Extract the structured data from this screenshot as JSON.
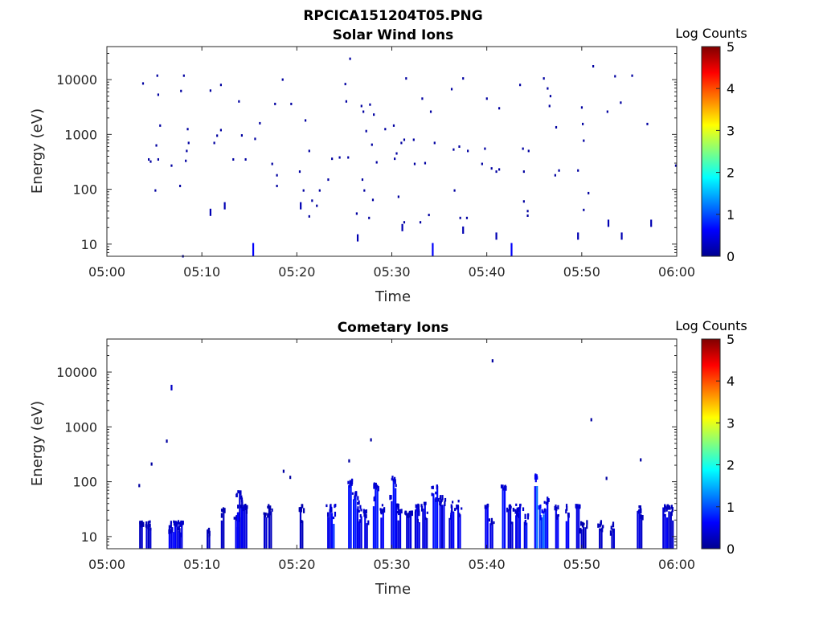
{
  "figure": {
    "title": "RPCICA151204T05.PNG"
  },
  "time_ticks": [
    "05:00",
    "05:10",
    "05:20",
    "05:30",
    "05:40",
    "05:50",
    "06:00"
  ],
  "energy_ticks": [
    {
      "value": 10,
      "label": "10"
    },
    {
      "value": 100,
      "label": "100"
    },
    {
      "value": 1000,
      "label": "1000"
    },
    {
      "value": 10000,
      "label": "10000"
    }
  ],
  "colorbar": {
    "label": "Log Counts",
    "ticks": [
      "0",
      "1",
      "2",
      "3",
      "4",
      "5"
    ],
    "range": [
      0,
      5
    ],
    "colormap": [
      "#00008f",
      "#0000ff",
      "#0080ff",
      "#00ffff",
      "#80ff80",
      "#ffff00",
      "#ff8000",
      "#ff0000",
      "#800000"
    ]
  },
  "chart_data": [
    {
      "type": "heatmap",
      "title": "Solar Wind Ions",
      "xlabel": "Time",
      "ylabel": "Energy (eV)",
      "xlim": [
        "05:00",
        "06:00"
      ],
      "ylim": [
        6,
        40000
      ],
      "yscale": "log",
      "zlabel": "Log Counts",
      "zlim": [
        0,
        5
      ],
      "grid": false,
      "colorbar_position": "right",
      "events_minutes_energy_count": [
        [
          3.8,
          8500,
          0.1
        ],
        [
          4.4,
          350,
          0.1
        ],
        [
          4.6,
          320,
          0.1
        ],
        [
          5.1,
          95,
          0.1
        ],
        [
          5.2,
          630,
          0.1
        ],
        [
          5.3,
          11800,
          0.1
        ],
        [
          5.4,
          5300,
          0.1
        ],
        [
          5.4,
          350,
          0.1
        ],
        [
          5.6,
          1450,
          0.1
        ],
        [
          6.8,
          270,
          0.1
        ],
        [
          7.7,
          115,
          0.1
        ],
        [
          7.8,
          6200,
          0.1
        ],
        [
          8.1,
          11800,
          0.1
        ],
        [
          8.3,
          330,
          0.1
        ],
        [
          8.4,
          500,
          0.1
        ],
        [
          8.5,
          1250,
          0.1
        ],
        [
          8.6,
          700,
          0.1
        ],
        [
          10.9,
          6300,
          0.1
        ],
        [
          10.9,
          38,
          0.2
        ],
        [
          11.3,
          700,
          0.1
        ],
        [
          11.6,
          950,
          0.1
        ],
        [
          12.0,
          1200,
          0.1
        ],
        [
          12.0,
          8000,
          0.1
        ],
        [
          12.4,
          50,
          0.2
        ],
        [
          13.3,
          350,
          0.1
        ],
        [
          13.9,
          4000,
          0.1
        ],
        [
          14.2,
          960,
          0.1
        ],
        [
          14.6,
          350,
          0.1
        ],
        [
          15.4,
          8,
          0.6
        ],
        [
          15.6,
          830,
          0.1
        ],
        [
          16.1,
          1600,
          0.1
        ],
        [
          17.4,
          290,
          0.1
        ],
        [
          17.7,
          3600,
          0.1
        ],
        [
          17.9,
          180,
          0.1
        ],
        [
          17.9,
          115,
          0.1
        ],
        [
          18.5,
          10000,
          0.1
        ],
        [
          19.4,
          3600,
          0.1
        ],
        [
          20.3,
          210,
          0.1
        ],
        [
          20.4,
          50,
          0.2
        ],
        [
          20.7,
          95,
          0.1
        ],
        [
          20.9,
          1800,
          0.1
        ],
        [
          21.3,
          500,
          0.1
        ],
        [
          21.3,
          32,
          0.1
        ],
        [
          21.6,
          62,
          0.1
        ],
        [
          22.1,
          50,
          0.1
        ],
        [
          22.4,
          95,
          0.1
        ],
        [
          23.3,
          150,
          0.1
        ],
        [
          23.7,
          360,
          0.1
        ],
        [
          24.5,
          380,
          0.1
        ],
        [
          25.1,
          8300,
          0.1
        ],
        [
          25.2,
          4000,
          0.1
        ],
        [
          25.4,
          380,
          0.1
        ],
        [
          25.6,
          24000,
          0.1
        ],
        [
          26.3,
          36,
          0.1
        ],
        [
          26.4,
          13,
          0.2
        ],
        [
          26.8,
          3300,
          0.1
        ],
        [
          26.9,
          150,
          0.1
        ],
        [
          27.0,
          2600,
          0.1
        ],
        [
          27.1,
          95,
          0.1
        ],
        [
          27.3,
          1150,
          0.1
        ],
        [
          27.6,
          30,
          0.1
        ],
        [
          27.7,
          3500,
          0.1
        ],
        [
          27.9,
          650,
          0.1
        ],
        [
          28.1,
          2300,
          0.1
        ],
        [
          28.0,
          64,
          0.1
        ],
        [
          28.4,
          310,
          0.1
        ],
        [
          29.3,
          1250,
          0.1
        ],
        [
          30.2,
          1450,
          0.1
        ],
        [
          30.3,
          360,
          0.1
        ],
        [
          30.5,
          450,
          0.1
        ],
        [
          30.7,
          73,
          0.1
        ],
        [
          31.0,
          700,
          0.1
        ],
        [
          31.1,
          20,
          0.2
        ],
        [
          31.3,
          800,
          0.1
        ],
        [
          31.3,
          25,
          0.1
        ],
        [
          31.5,
          10500,
          0.1
        ],
        [
          32.3,
          800,
          0.1
        ],
        [
          32.4,
          290,
          0.1
        ],
        [
          33.0,
          25,
          0.1
        ],
        [
          33.2,
          4500,
          0.1
        ],
        [
          33.5,
          300,
          0.1
        ],
        [
          33.9,
          34,
          0.1
        ],
        [
          34.1,
          2600,
          0.1
        ],
        [
          34.3,
          8,
          0.6
        ],
        [
          34.5,
          700,
          0.1
        ],
        [
          36.3,
          6700,
          0.1
        ],
        [
          36.5,
          530,
          0.1
        ],
        [
          36.6,
          95,
          0.1
        ],
        [
          37.1,
          600,
          0.1
        ],
        [
          37.2,
          30,
          0.1
        ],
        [
          37.5,
          10500,
          0.1
        ],
        [
          37.5,
          18,
          0.2
        ],
        [
          37.9,
          30,
          0.1
        ],
        [
          38.0,
          500,
          0.1
        ],
        [
          39.5,
          290,
          0.1
        ],
        [
          39.8,
          550,
          0.1
        ],
        [
          40.0,
          4500,
          0.1
        ],
        [
          40.5,
          240,
          0.1
        ],
        [
          41.0,
          14,
          0.2
        ],
        [
          41.0,
          210,
          0.1
        ],
        [
          41.3,
          3000,
          0.1
        ],
        [
          41.3,
          230,
          0.1
        ],
        [
          42.6,
          8,
          0.6
        ],
        [
          43.5,
          8000,
          0.1
        ],
        [
          43.8,
          550,
          0.1
        ],
        [
          43.9,
          210,
          0.1
        ],
        [
          43.9,
          60,
          0.1
        ],
        [
          44.3,
          33,
          0.1
        ],
        [
          44.3,
          40,
          0.1
        ],
        [
          44.4,
          500,
          0.1
        ],
        [
          46.0,
          10500,
          0.1
        ],
        [
          46.4,
          6900,
          0.1
        ],
        [
          46.6,
          3300,
          0.1
        ],
        [
          46.7,
          5000,
          0.1
        ],
        [
          47.2,
          180,
          0.1
        ],
        [
          47.3,
          1350,
          0.1
        ],
        [
          47.6,
          220,
          0.1
        ],
        [
          49.6,
          14,
          0.2
        ],
        [
          49.6,
          220,
          0.1
        ],
        [
          50.0,
          3100,
          0.1
        ],
        [
          50.1,
          1550,
          0.1
        ],
        [
          50.2,
          42,
          0.1
        ],
        [
          50.2,
          770,
          0.1
        ],
        [
          50.7,
          85,
          0.1
        ],
        [
          51.2,
          17500,
          0.1
        ],
        [
          52.7,
          2600,
          0.1
        ],
        [
          52.8,
          24,
          0.2
        ],
        [
          53.5,
          11500,
          0.1
        ],
        [
          54.1,
          3800,
          0.1
        ],
        [
          54.2,
          14,
          0.2
        ],
        [
          55.3,
          11800,
          0.1
        ],
        [
          56.9,
          1550,
          0.1
        ],
        [
          57.3,
          24,
          0.2
        ],
        [
          59.9,
          270,
          0.1
        ],
        [
          8.0,
          6,
          0.1
        ]
      ]
    },
    {
      "type": "heatmap",
      "title": "Cometary Ions",
      "xlabel": "Time",
      "ylabel": "Energy (eV)",
      "xlim": [
        "05:00",
        "06:00"
      ],
      "ylim": [
        6,
        40000
      ],
      "yscale": "log",
      "zlabel": "Log Counts",
      "zlim": [
        0,
        5
      ],
      "grid": false,
      "colorbar_position": "right",
      "isolated_events_minutes_energy_count": [
        [
          3.4,
          85,
          0.1
        ],
        [
          4.7,
          210,
          0.1
        ],
        [
          6.3,
          550,
          0.1
        ],
        [
          6.8,
          5200,
          0.3
        ],
        [
          18.6,
          155,
          0.1
        ],
        [
          19.3,
          120,
          0.1
        ],
        [
          25.5,
          240,
          0.1
        ],
        [
          27.8,
          580,
          0.1
        ],
        [
          40.6,
          16000,
          0.1
        ],
        [
          51.0,
          1350,
          0.1
        ],
        [
          52.6,
          115,
          0.1
        ],
        [
          56.2,
          250,
          0.1
        ]
      ],
      "activity_bursts_minutes_topEnergy_count": [
        [
          3.6,
          20,
          0.3
        ],
        [
          4.4,
          20,
          0.4
        ],
        [
          6.8,
          20,
          0.5
        ],
        [
          7.4,
          20,
          0.5
        ],
        [
          7.8,
          20,
          0.5
        ],
        [
          10.7,
          15,
          0.3
        ],
        [
          12.2,
          40,
          0.3
        ],
        [
          13.8,
          28,
          0.4
        ],
        [
          14.0,
          70,
          0.5
        ],
        [
          14.5,
          40,
          0.4
        ],
        [
          16.7,
          28,
          0.3
        ],
        [
          17.2,
          40,
          0.3
        ],
        [
          20.5,
          40,
          0.3
        ],
        [
          23.4,
          40,
          0.5
        ],
        [
          23.8,
          40,
          0.7
        ],
        [
          25.6,
          120,
          0.6
        ],
        [
          26.2,
          70,
          0.6
        ],
        [
          26.7,
          40,
          0.6
        ],
        [
          27.3,
          40,
          0.5
        ],
        [
          28.3,
          100,
          0.6
        ],
        [
          29.0,
          40,
          0.5
        ],
        [
          30.2,
          130,
          0.6
        ],
        [
          30.7,
          40,
          0.5
        ],
        [
          31.8,
          30,
          0.4
        ],
        [
          32.7,
          40,
          0.5
        ],
        [
          33.5,
          45,
          0.5
        ],
        [
          34.6,
          90,
          0.6
        ],
        [
          35.3,
          60,
          0.5
        ],
        [
          36.3,
          45,
          0.5
        ],
        [
          37.1,
          50,
          0.5
        ],
        [
          40.0,
          40,
          0.5
        ],
        [
          40.5,
          22,
          0.4
        ],
        [
          41.8,
          90,
          0.6
        ],
        [
          42.5,
          40,
          0.5
        ],
        [
          43.3,
          40,
          0.6
        ],
        [
          44.1,
          40,
          0.6
        ],
        [
          45.2,
          180,
          0.9
        ],
        [
          45.8,
          40,
          1.1
        ],
        [
          46.3,
          55,
          0.6
        ],
        [
          47.4,
          40,
          0.5
        ],
        [
          48.5,
          40,
          0.5
        ],
        [
          49.6,
          40,
          0.6
        ],
        [
          50.2,
          20,
          0.3
        ],
        [
          52.0,
          20,
          0.4
        ],
        [
          53.3,
          20,
          0.4
        ],
        [
          56.1,
          40,
          0.4
        ],
        [
          58.8,
          40,
          0.5
        ],
        [
          59.4,
          40,
          0.4
        ]
      ]
    }
  ]
}
